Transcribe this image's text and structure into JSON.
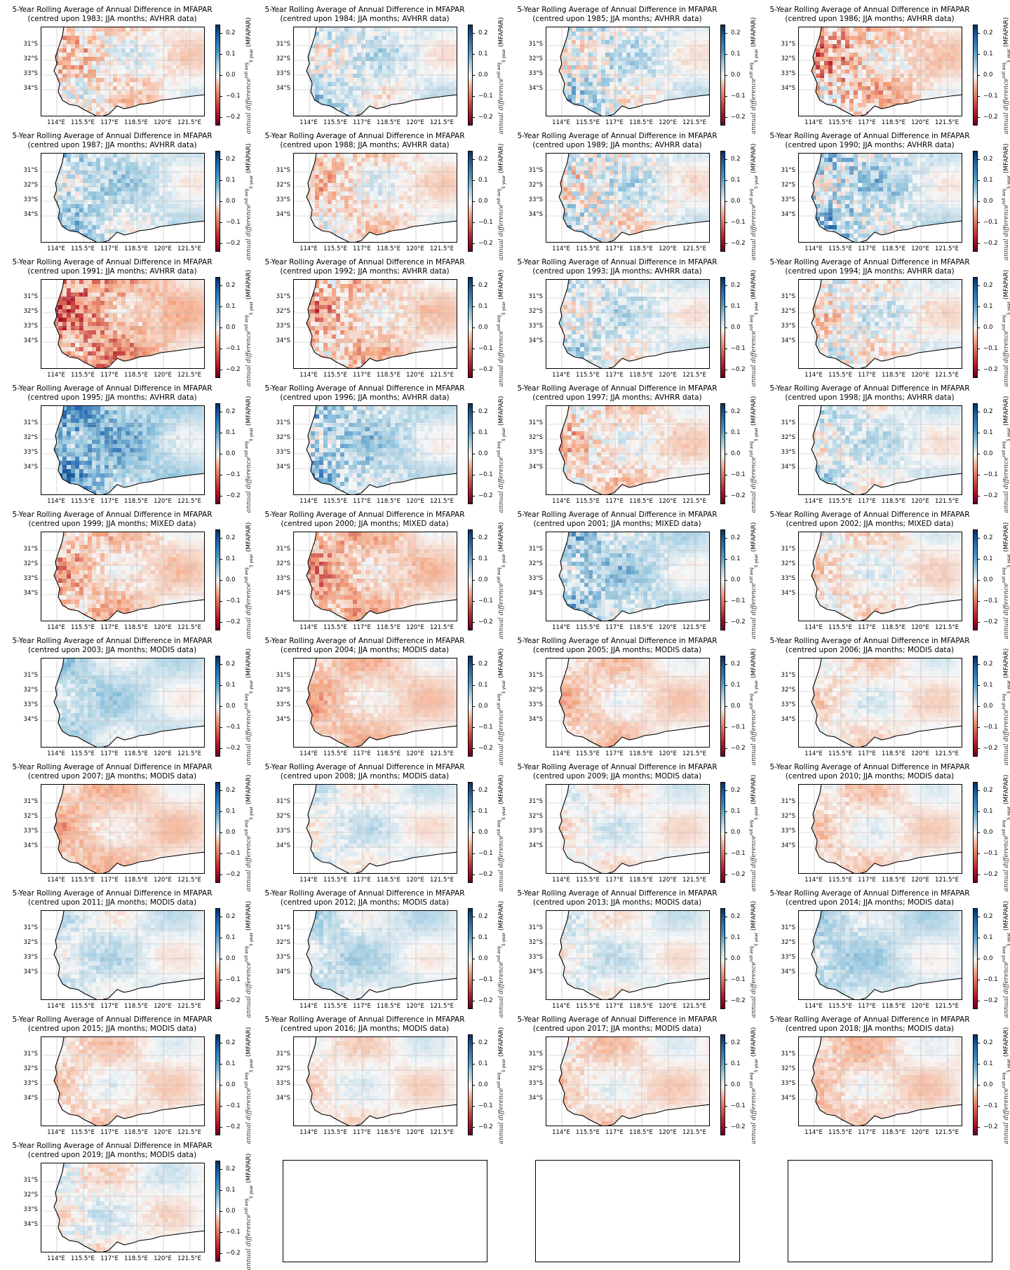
{
  "chart_data": {
    "type": "heatmap",
    "title_line1": "5-Year Rolling Average of Annual Difference in MFAPAR",
    "colorbar_label_math": "annual difference",
    "colorbar_label_sup": "roll avg",
    "colorbar_label_sub": "5 year",
    "colorbar_label_unit": "(MFAPAR)",
    "colorbar_ticks": [
      "0.2",
      "0.1",
      "0.0",
      "−0.1",
      "−0.2"
    ],
    "colorbar_values": [
      0.2,
      0.1,
      0.0,
      -0.1,
      -0.2
    ],
    "colorbar_range": [
      -0.24,
      0.24
    ],
    "colormap": [
      "#053061",
      "#2166ac",
      "#92c5de",
      "#f7f7f7",
      "#f4a582",
      "#b2182b",
      "#67001f"
    ],
    "y_ticks": [
      "31°S",
      "32°S",
      "33°S",
      "34°S"
    ],
    "x_ticks": [
      "114°E",
      "115.5°E",
      "117°E",
      "118.5°E",
      "120°E",
      "121.5°E"
    ],
    "panels": [
      {
        "title": "(centred upon 1983; JJA months; AVHRR data)",
        "year": 1983,
        "mean_tone": -0.02,
        "noise": 0.08
      },
      {
        "title": "(centred upon 1984; JJA months; AVHRR data)",
        "year": 1984,
        "mean_tone": 0.02,
        "noise": 0.07
      },
      {
        "title": "(centred upon 1985; JJA months; AVHRR data)",
        "year": 1985,
        "mean_tone": 0.02,
        "noise": 0.09
      },
      {
        "title": "(centred upon 1986; JJA months; AVHRR data)",
        "year": 1986,
        "mean_tone": -0.04,
        "noise": 0.1
      },
      {
        "title": "(centred upon 1987; JJA months; AVHRR data)",
        "year": 1987,
        "mean_tone": 0.04,
        "noise": 0.07
      },
      {
        "title": "(centred upon 1988; JJA months; AVHRR data)",
        "year": 1988,
        "mean_tone": -0.02,
        "noise": 0.07
      },
      {
        "title": "(centred upon 1989; JJA months; AVHRR data)",
        "year": 1989,
        "mean_tone": 0.01,
        "noise": 0.1
      },
      {
        "title": "(centred upon 1990; JJA months; AVHRR data)",
        "year": 1990,
        "mean_tone": 0.04,
        "noise": 0.1
      },
      {
        "title": "(centred upon 1991; JJA months; AVHRR data)",
        "year": 1991,
        "mean_tone": -0.07,
        "noise": 0.08
      },
      {
        "title": "(centred upon 1992; JJA months; AVHRR data)",
        "year": 1992,
        "mean_tone": -0.04,
        "noise": 0.08
      },
      {
        "title": "(centred upon 1993; JJA months; AVHRR data)",
        "year": 1993,
        "mean_tone": 0.02,
        "noise": 0.07
      },
      {
        "title": "(centred upon 1994; JJA months; AVHRR data)",
        "year": 1994,
        "mean_tone": 0.0,
        "noise": 0.08
      },
      {
        "title": "(centred upon 1995; JJA months; AVHRR data)",
        "year": 1995,
        "mean_tone": 0.08,
        "noise": 0.08
      },
      {
        "title": "(centred upon 1996; JJA months; AVHRR data)",
        "year": 1996,
        "mean_tone": 0.05,
        "noise": 0.08
      },
      {
        "title": "(centred upon 1997; JJA months; AVHRR data)",
        "year": 1997,
        "mean_tone": -0.02,
        "noise": 0.07
      },
      {
        "title": "(centred upon 1998; JJA months; AVHRR data)",
        "year": 1998,
        "mean_tone": 0.02,
        "noise": 0.06
      },
      {
        "title": "(centred upon 1999; JJA months; MIXED data)",
        "year": 1999,
        "mean_tone": -0.04,
        "noise": 0.06
      },
      {
        "title": "(centred upon 2000; JJA months; MIXED data)",
        "year": 2000,
        "mean_tone": -0.05,
        "noise": 0.06
      },
      {
        "title": "(centred upon 2001; JJA months; MIXED data)",
        "year": 2001,
        "mean_tone": 0.05,
        "noise": 0.07
      },
      {
        "title": "(centred upon 2002; JJA months; MIXED data)",
        "year": 2002,
        "mean_tone": -0.01,
        "noise": 0.05
      },
      {
        "title": "(centred upon 2003; JJA months; MODIS data)",
        "year": 2003,
        "mean_tone": 0.04,
        "noise": 0.03
      },
      {
        "title": "(centred upon 2004; JJA months; MODIS data)",
        "year": 2004,
        "mean_tone": -0.04,
        "noise": 0.03
      },
      {
        "title": "(centred upon 2005; JJA months; MODIS data)",
        "year": 2005,
        "mean_tone": -0.03,
        "noise": 0.03
      },
      {
        "title": "(centred upon 2006; JJA months; MODIS data)",
        "year": 2006,
        "mean_tone": -0.01,
        "noise": 0.03
      },
      {
        "title": "(centred upon 2007; JJA months; MODIS data)",
        "year": 2007,
        "mean_tone": -0.04,
        "noise": 0.03
      },
      {
        "title": "(centred upon 2008; JJA months; MODIS data)",
        "year": 2008,
        "mean_tone": 0.01,
        "noise": 0.03
      },
      {
        "title": "(centred upon 2009; JJA months; MODIS data)",
        "year": 2009,
        "mean_tone": 0.0,
        "noise": 0.03
      },
      {
        "title": "(centred upon 2010; JJA months; MODIS data)",
        "year": 2010,
        "mean_tone": -0.02,
        "noise": 0.03
      },
      {
        "title": "(centred upon 2011; JJA months; MODIS data)",
        "year": 2011,
        "mean_tone": 0.02,
        "noise": 0.03
      },
      {
        "title": "(centred upon 2012; JJA months; MODIS data)",
        "year": 2012,
        "mean_tone": 0.03,
        "noise": 0.03
      },
      {
        "title": "(centred upon 2013; JJA months; MODIS data)",
        "year": 2013,
        "mean_tone": 0.01,
        "noise": 0.03
      },
      {
        "title": "(centred upon 2014; JJA months; MODIS data)",
        "year": 2014,
        "mean_tone": 0.04,
        "noise": 0.03
      },
      {
        "title": "(centred upon 2015; JJA months; MODIS data)",
        "year": 2015,
        "mean_tone": -0.02,
        "noise": 0.03
      },
      {
        "title": "(centred upon 2016; JJA months; MODIS data)",
        "year": 2016,
        "mean_tone": -0.01,
        "noise": 0.02
      },
      {
        "title": "(centred upon 2017; JJA months; MODIS data)",
        "year": 2017,
        "mean_tone": -0.02,
        "noise": 0.03
      },
      {
        "title": "(centred upon 2018; JJA months; MODIS data)",
        "year": 2018,
        "mean_tone": -0.03,
        "noise": 0.03
      },
      {
        "title": "(centred upon 2019; JJA months; MODIS data)",
        "year": 2019,
        "mean_tone": 0.0,
        "noise": 0.04
      }
    ],
    "empty_panels": 3
  }
}
